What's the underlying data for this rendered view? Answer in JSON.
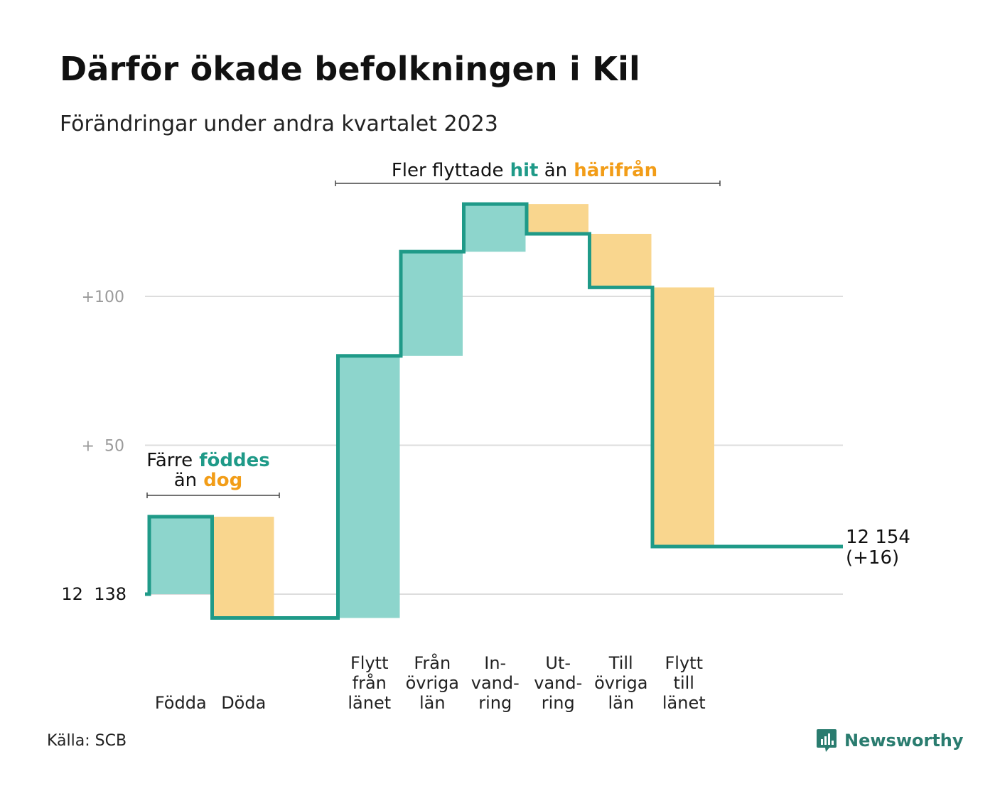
{
  "header": {
    "title": "Därför ökade befolkningen i Kil",
    "subtitle": "Förändringar under andra kvartalet 2023"
  },
  "footer": {
    "source": "Källa: SCB",
    "brand": "Newsworthy"
  },
  "colors": {
    "inflow_fill": "#8dd5cc",
    "outflow_fill": "#f9d68e",
    "step_line": "#1f9a88",
    "inflow_text": "#1f9a88",
    "outflow_text": "#f29d18",
    "grid": "#dddddd",
    "tick_text": "#9a9a9a",
    "brand": "#2a7c6f"
  },
  "chart_data": {
    "type": "waterfall",
    "title": "Därför ökade befolkningen i Kil",
    "subtitle": "Förändringar under andra kvartalet 2023",
    "start_value": 12138,
    "end_value": 12154,
    "end_label": [
      "12 154",
      "(+16)"
    ],
    "ylim": [
      -8,
      130
    ],
    "y_ticks": [
      {
        "value": 0,
        "label": "12  138"
      },
      {
        "value": 50,
        "label": "+  50"
      },
      {
        "value": 100,
        "label": "+100"
      }
    ],
    "grid": true,
    "categories": [
      {
        "label": [
          "Födda"
        ],
        "change": 26,
        "kind": "in"
      },
      {
        "label": [
          "Döda"
        ],
        "change": -34,
        "kind": "out"
      },
      {
        "label": [
          ""
        ],
        "change": 0,
        "kind": "gap"
      },
      {
        "label": [
          "Flytt",
          "från",
          "länet"
        ],
        "change": 88,
        "kind": "in"
      },
      {
        "label": [
          "Från",
          "övriga",
          "län"
        ],
        "change": 35,
        "kind": "in"
      },
      {
        "label": [
          "In-",
          "vand-",
          "ring"
        ],
        "change": 16,
        "kind": "in"
      },
      {
        "label": [
          "Ut-",
          "vand-",
          "ring"
        ],
        "change": -10,
        "kind": "out"
      },
      {
        "label": [
          "Till",
          "övriga",
          "län"
        ],
        "change": -18,
        "kind": "out"
      },
      {
        "label": [
          "Flytt",
          "till",
          "länet"
        ],
        "change": -87,
        "kind": "out"
      }
    ],
    "annotations": [
      {
        "line1": [
          {
            "text": "Färre",
            "style": "plain"
          },
          {
            "text": "föddes",
            "style": "in"
          }
        ],
        "line2": [
          {
            "text": "än",
            "style": "plain"
          },
          {
            "text": "dog",
            "style": "out"
          }
        ]
      },
      {
        "line1": [
          {
            "text": "Fler flyttade",
            "style": "plain"
          },
          {
            "text": "hit",
            "style": "in"
          },
          {
            "text": "än",
            "style": "plain"
          },
          {
            "text": "härifrån",
            "style": "out"
          }
        ]
      }
    ]
  }
}
